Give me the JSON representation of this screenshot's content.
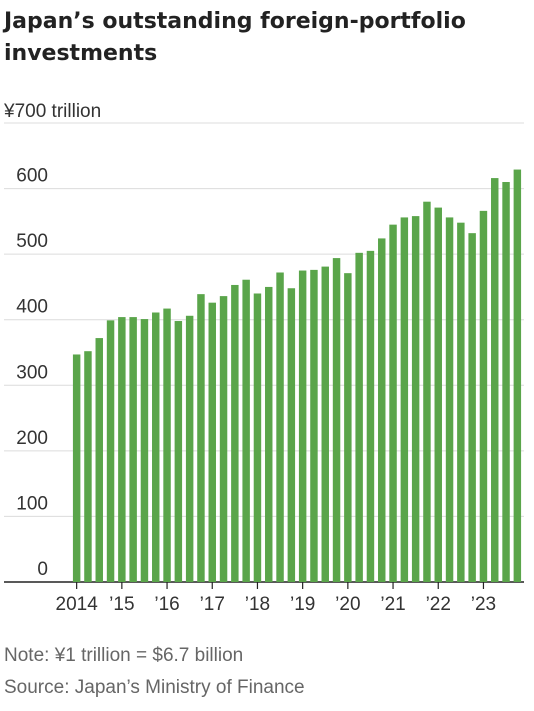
{
  "chart_data": {
    "type": "bar",
    "title": "Japan’s outstanding foreign-portfolio investments",
    "y_unit_label": "¥700 trillion",
    "y_ticks": [
      "0",
      "100",
      "200",
      "300",
      "400",
      "500",
      "600"
    ],
    "ylim": [
      0,
      700
    ],
    "grid": true,
    "x_tick_labels": [
      "2014",
      "’15",
      "’16",
      "’17",
      "’18",
      "’19",
      "’20",
      "’21",
      "’22",
      "’23"
    ],
    "bar_color": "#5aa54a",
    "values": [
      347,
      352,
      372,
      399,
      404,
      404,
      401,
      411,
      417,
      398,
      406,
      439,
      426,
      436,
      453,
      461,
      440,
      450,
      472,
      448,
      475,
      476,
      481,
      494,
      471,
      502,
      505,
      524,
      545,
      556,
      558,
      580,
      571,
      556,
      548,
      532,
      566,
      616,
      610,
      629
    ]
  },
  "footer": {
    "note": "Note: ¥1 trillion = $6.7 billion",
    "source": "Source: Japan’s Ministry of Finance"
  }
}
